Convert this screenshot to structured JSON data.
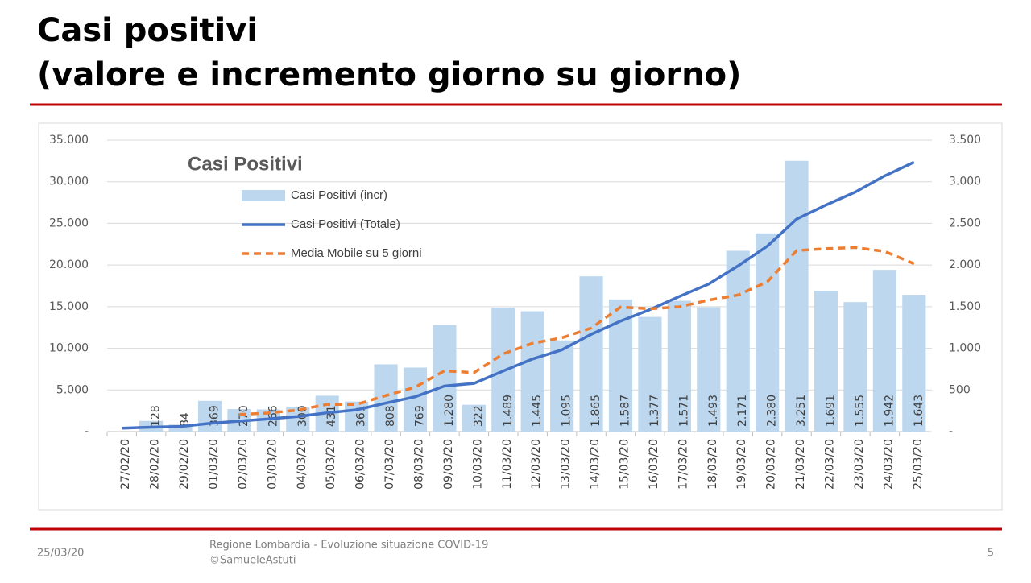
{
  "slide": {
    "title_lines": [
      "Casi positivi",
      "(valore e incremento giorno su giorno)"
    ],
    "footer_date": "25/03/20",
    "footer_lines": [
      "Regione Lombardia - Evoluzione situazione COVID-19",
      "©SamueleAstuti"
    ],
    "page_number": "5"
  },
  "chart_data": {
    "type": "combo",
    "title": "Casi Positivi",
    "categories": [
      "27/02/20",
      "28/02/20",
      "29/02/20",
      "01/03/20",
      "02/03/20",
      "03/03/20",
      "04/03/20",
      "05/03/20",
      "06/03/20",
      "07/03/20",
      "08/03/20",
      "09/03/20",
      "10/03/20",
      "11/03/20",
      "12/03/20",
      "13/03/20",
      "14/03/20",
      "15/03/20",
      "16/03/20",
      "17/03/20",
      "18/03/20",
      "19/03/20",
      "20/03/20",
      "21/03/20",
      "22/03/20",
      "23/03/20",
      "24/03/20",
      "25/03/20"
    ],
    "series": [
      {
        "name": "Casi Positivi (incr)",
        "type": "bar",
        "axis": "y2",
        "color": "#bdd7ee",
        "values": [
          null,
          128,
          84,
          369,
          270,
          266,
          300,
          431,
          361,
          808,
          769,
          1280,
          322,
          1489,
          1445,
          1095,
          1865,
          1587,
          1377,
          1571,
          1493,
          2171,
          2380,
          3251,
          1691,
          1555,
          1942,
          1643
        ],
        "value_labels": [
          null,
          "128",
          "84",
          "369",
          "270",
          "266",
          "300",
          "431",
          "361",
          "808",
          "769",
          "1.280",
          "322",
          "1.489",
          "1.445",
          "1.095",
          "1.865",
          "1.587",
          "1.377",
          "1.571",
          "1.493",
          "2.171",
          "2.380",
          "3.251",
          "1.691",
          "1.555",
          "1.942",
          "1.643"
        ]
      },
      {
        "name": "Casi Positivi (Totale)",
        "type": "line",
        "axis": "y",
        "color": "#4472c4",
        "values": [
          403,
          531,
          615,
          984,
          1254,
          1520,
          1820,
          2251,
          2612,
          3420,
          4189,
          5469,
          5791,
          7280,
          8725,
          9820,
          11685,
          13272,
          14649,
          16220,
          17713,
          19884,
          22264,
          25515,
          27206,
          28761,
          30703,
          32346
        ]
      },
      {
        "name": "Media Mobile su 5 giorni",
        "type": "line",
        "dashed": true,
        "axis": "y2",
        "color": "#ed7d31",
        "values": [
          null,
          null,
          null,
          null,
          205,
          223,
          258,
          327,
          326,
          433,
          534,
          730,
          708,
          934,
          1061,
          1126,
          1243,
          1496,
          1474,
          1499,
          1579,
          1640,
          1798,
          2173,
          2197,
          2210,
          2164,
          2016
        ]
      }
    ],
    "ylim": [
      0,
      35000
    ],
    "yticks": [
      {
        "value": 0,
        "label": "-"
      },
      {
        "value": 5000,
        "label": "5.000"
      },
      {
        "value": 10000,
        "label": "10.000"
      },
      {
        "value": 15000,
        "label": "15.000"
      },
      {
        "value": 20000,
        "label": "20.000"
      },
      {
        "value": 25000,
        "label": "25.000"
      },
      {
        "value": 30000,
        "label": "30.000"
      },
      {
        "value": 35000,
        "label": "35.000"
      }
    ],
    "y2lim": [
      0,
      3500
    ],
    "y2ticks": [
      {
        "value": 0,
        "label": "-"
      },
      500,
      {
        "value": 1000,
        "label": "1.000"
      },
      {
        "value": 1500,
        "label": "1.500"
      },
      {
        "value": 2000,
        "label": "2.000"
      },
      {
        "value": 2500,
        "label": "2.500"
      },
      {
        "value": 3000,
        "label": "3.000"
      },
      {
        "value": 3500,
        "label": "3.500"
      }
    ],
    "grid": true
  }
}
